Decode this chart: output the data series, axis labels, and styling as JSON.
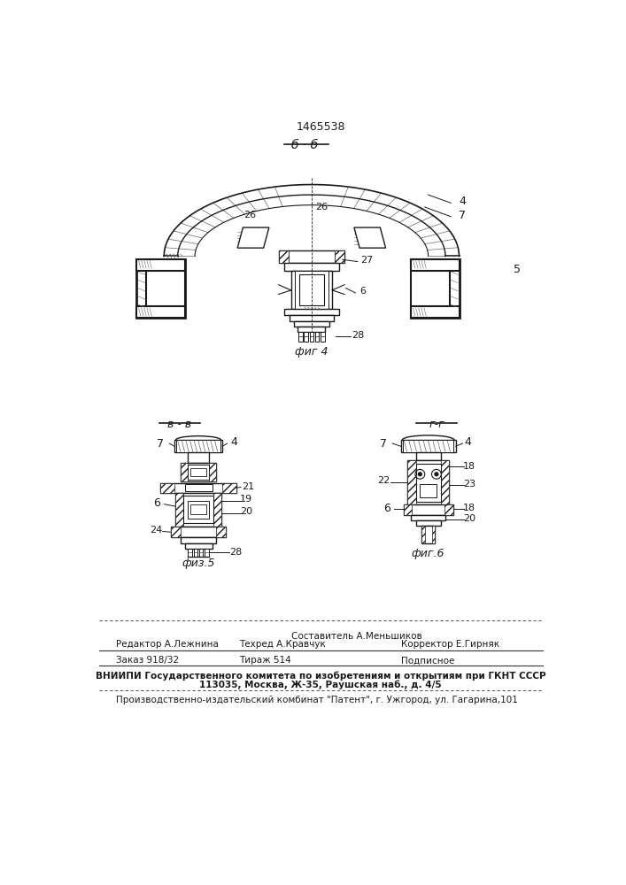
{
  "patent_number": "1465538",
  "section_label_top": "б · б",
  "section_label_bl": "в - в",
  "section_label_br": "г-г",
  "fig4_label": "фиг 4",
  "fig5_label": "физ.5",
  "fig6_label": "фиг.6",
  "bg_color": "#ffffff",
  "line_color": "#1a1a1a",
  "footer_line1_left": "Редактор А.Лежнина",
  "footer_line1_center": "Составитель А.Меньшиков",
  "footer_line1_center2": "Техред А.Кравчук",
  "footer_line1_right": "Корректор Е.Гирняк",
  "footer_line2_left": "Заказ 918/32",
  "footer_line2_center": "Тираж 514",
  "footer_line2_right": "Подписное",
  "footer_line3": "ВНИИПИ Государственного комитета по изобретениям и открытиям при ГКНТ СССР",
  "footer_line4": "113035, Москва, Ж-35, Раушская наб., д. 4/5",
  "footer_line5": "Производственно-издательский комбинат \"Патент\", г. Ужгород, ул. Гагарина,101"
}
